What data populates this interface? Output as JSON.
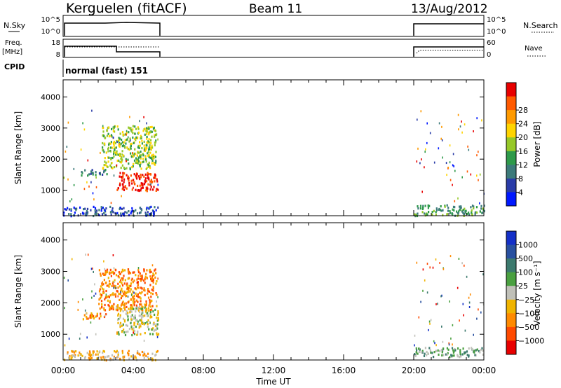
{
  "header": {
    "station": "Kerguelen (fitACF)",
    "beam": "Beam 11",
    "date": "13/Aug/2012"
  },
  "panels": {
    "nsky": {
      "label": "N.Sky",
      "ytop": "10^5",
      "ybottom": "10^0"
    },
    "nsearch": {
      "label": "N.Search",
      "ytop": "10^5",
      "ybottom": "10^0"
    },
    "freq": {
      "label_line1": "Freq.",
      "label_line2": "[MHz]",
      "ytop": "18",
      "ybottom": "8"
    },
    "nave": {
      "label": "Nave",
      "ytop": "60",
      "ybottom": "0"
    },
    "cpid": {
      "label": "CPID",
      "value": "normal (fast) 151"
    }
  },
  "colors": {
    "power": [
      "#0018ff",
      "#2a3ca8",
      "#3c7a7a",
      "#2e9a4a",
      "#96c828",
      "#ffd400",
      "#ff9a00",
      "#ff5a00",
      "#e80000"
    ],
    "velocity": [
      "#1430c8",
      "#2850a0",
      "#3c7a6e",
      "#4aa040",
      "#c0c0b8",
      "#f0b400",
      "#ff8a00",
      "#ff4a00",
      "#e80000"
    ]
  },
  "chart_data": [
    {
      "type": "heatmap",
      "title": "Power",
      "xlabel": "",
      "ylabel": "Slant Range [km]",
      "x_ticks": [
        "00:00",
        "04:00",
        "08:00",
        "12:00",
        "16:00",
        "20:00",
        "00:00"
      ],
      "y_ticks": [
        "1000",
        "2000",
        "3000",
        "4000"
      ],
      "ylim": [
        180,
        4550
      ],
      "xlim_hours": [
        0,
        24
      ],
      "colorbar_label": "Power [dB]",
      "colorbar_ticks": [
        "4",
        "8",
        "12",
        "16",
        "20",
        "24",
        "28"
      ],
      "data_gaps_hours": [
        [
          5.4,
          20.0
        ]
      ],
      "regions": [
        {
          "t": [
            0.0,
            5.4
          ],
          "range_km": [
            200,
            500
          ],
          "level": 1
        },
        {
          "t": [
            20.0,
            24.0
          ],
          "range_km": [
            200,
            550
          ],
          "level": 3
        },
        {
          "t": [
            1.0,
            2.5
          ],
          "range_km": [
            1500,
            1700
          ],
          "level": 2
        },
        {
          "t": [
            2.2,
            5.3
          ],
          "range_km": [
            1700,
            3100
          ],
          "level": 4
        },
        {
          "t": [
            3.0,
            5.4
          ],
          "range_km": [
            1000,
            1600
          ],
          "level": 8
        }
      ]
    },
    {
      "type": "heatmap",
      "title": "Velocity",
      "xlabel": "Time UT",
      "ylabel": "Slant Range [km]",
      "x_ticks": [
        "00:00",
        "04:00",
        "08:00",
        "12:00",
        "16:00",
        "20:00",
        "00:00"
      ],
      "y_ticks": [
        "1000",
        "2000",
        "3000",
        "4000"
      ],
      "ylim": [
        180,
        4550
      ],
      "xlim_hours": [
        0,
        24
      ],
      "colorbar_label": "Velocity [m s⁻¹]",
      "colorbar_ticks": [
        "1000",
        "500",
        "100",
        "25",
        "−25",
        "−100",
        "−500",
        "−1000"
      ],
      "data_gaps_hours": [
        [
          5.4,
          20.0
        ]
      ],
      "regions": [
        {
          "t": [
            0.0,
            5.4
          ],
          "range_km": [
            200,
            500
          ],
          "level": 5
        },
        {
          "t": [
            20.0,
            24.0
          ],
          "range_km": [
            300,
            600
          ],
          "level": 3
        },
        {
          "t": [
            1.0,
            2.5
          ],
          "range_km": [
            1500,
            1700
          ],
          "level": 6
        },
        {
          "t": [
            2.0,
            5.3
          ],
          "range_km": [
            1800,
            3100
          ],
          "level": 6
        },
        {
          "t": [
            3.0,
            5.4
          ],
          "range_km": [
            1000,
            1900
          ],
          "level": 4
        }
      ]
    }
  ]
}
